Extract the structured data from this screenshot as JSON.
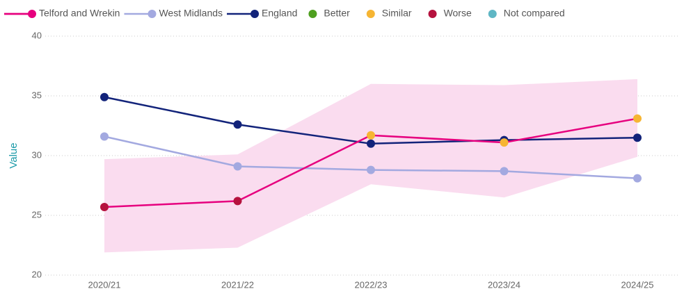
{
  "chart_data": {
    "type": "line",
    "y_label": "Value",
    "categories": [
      "2020/21",
      "2021/22",
      "2022/23",
      "2023/24",
      "2024/25"
    ],
    "ylim": [
      20,
      40
    ],
    "yticks": [
      20,
      25,
      30,
      35,
      40
    ],
    "grid": true,
    "series": [
      {
        "name": "Telford and Wrekin",
        "color": "#e6007e",
        "values": [
          25.7,
          26.2,
          31.7,
          31.1,
          33.1
        ],
        "point_status": [
          "Worse",
          "Worse",
          "Similar",
          "Similar",
          "Similar"
        ]
      },
      {
        "name": "West Midlands",
        "color": "#a3a9e0",
        "values": [
          31.6,
          29.1,
          28.8,
          28.7,
          28.1
        ]
      },
      {
        "name": "England",
        "color": "#12237a",
        "values": [
          34.9,
          32.6,
          31.0,
          31.3,
          31.5
        ]
      }
    ],
    "band": {
      "color": "#fadcef",
      "lower": [
        21.9,
        22.3,
        27.6,
        26.5,
        29.9
      ],
      "upper": [
        29.7,
        30.1,
        36.0,
        35.9,
        36.4
      ]
    },
    "legend_categories": [
      {
        "name": "Better",
        "color": "#4e9f1f"
      },
      {
        "name": "Similar",
        "color": "#f6b533"
      },
      {
        "name": "Worse",
        "color": "#b5123e"
      },
      {
        "name": "Not compared",
        "color": "#5fb6c4"
      }
    ]
  }
}
